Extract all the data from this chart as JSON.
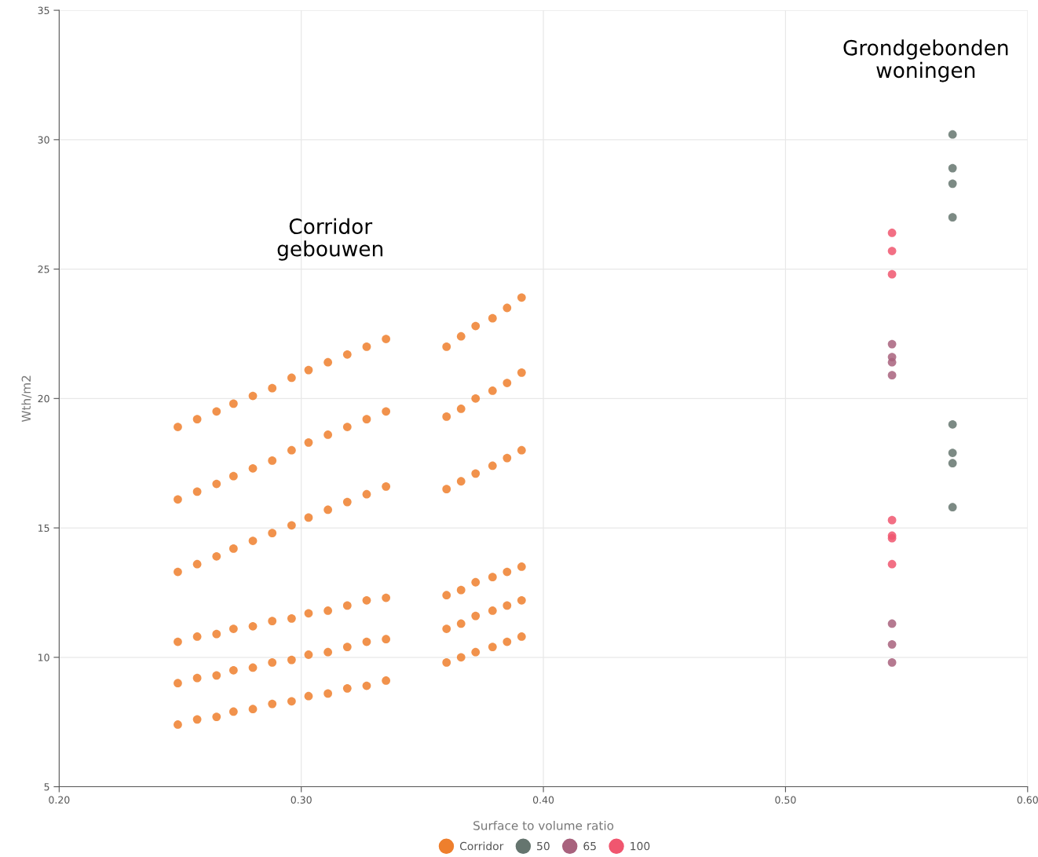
{
  "chart_data": {
    "type": "scatter",
    "xlabel": "Surface to volume ratio",
    "ylabel": "Wth/m2",
    "xlim": [
      0.2,
      0.6
    ],
    "xticks": [
      {
        "value": 0.2,
        "label": "0.20"
      },
      {
        "value": 0.3,
        "label": "0.30"
      },
      {
        "value": 0.4,
        "label": "0.40"
      },
      {
        "value": 0.5,
        "label": "0.50"
      },
      {
        "value": 0.6,
        "label": "0.60"
      }
    ],
    "ylim": [
      5,
      35
    ],
    "yticks": [
      5,
      10,
      15,
      20,
      25,
      30,
      35
    ],
    "grid": true,
    "legend": "bottom",
    "marker": "circle",
    "annotations": [
      "Corridor\ngebouwen",
      "Grondgebonden\nwoningen"
    ],
    "series": [
      {
        "name": "Corridor",
        "color": "#ee7f2d",
        "x": [
          0.249,
          0.249,
          0.249,
          0.249,
          0.249,
          0.249,
          0.257,
          0.257,
          0.257,
          0.257,
          0.257,
          0.257,
          0.265,
          0.265,
          0.265,
          0.265,
          0.265,
          0.265,
          0.272,
          0.272,
          0.272,
          0.272,
          0.272,
          0.272,
          0.28,
          0.28,
          0.28,
          0.28,
          0.28,
          0.28,
          0.288,
          0.288,
          0.288,
          0.288,
          0.288,
          0.288,
          0.296,
          0.296,
          0.296,
          0.296,
          0.296,
          0.296,
          0.303,
          0.303,
          0.303,
          0.303,
          0.303,
          0.303,
          0.311,
          0.311,
          0.311,
          0.311,
          0.311,
          0.311,
          0.319,
          0.319,
          0.319,
          0.319,
          0.319,
          0.319,
          0.327,
          0.327,
          0.327,
          0.327,
          0.327,
          0.327,
          0.335,
          0.335,
          0.335,
          0.335,
          0.335,
          0.335,
          0.36,
          0.36,
          0.36,
          0.36,
          0.36,
          0.36,
          0.366,
          0.366,
          0.366,
          0.366,
          0.366,
          0.366,
          0.372,
          0.372,
          0.372,
          0.372,
          0.372,
          0.372,
          0.379,
          0.379,
          0.379,
          0.379,
          0.379,
          0.379,
          0.385,
          0.385,
          0.385,
          0.385,
          0.385,
          0.385,
          0.391,
          0.391,
          0.391,
          0.391,
          0.391,
          0.391
        ],
        "values": [
          18.9,
          16.1,
          13.3,
          10.6,
          9.0,
          7.4,
          19.2,
          16.4,
          13.6,
          10.8,
          9.2,
          7.6,
          19.5,
          16.7,
          13.9,
          10.9,
          9.3,
          7.7,
          19.8,
          17.0,
          14.2,
          11.1,
          9.5,
          7.9,
          20.1,
          17.3,
          14.5,
          11.2,
          9.6,
          8.0,
          20.4,
          17.6,
          14.8,
          11.4,
          9.8,
          8.2,
          20.8,
          18.0,
          15.1,
          11.5,
          9.9,
          8.3,
          21.1,
          18.3,
          15.4,
          11.7,
          10.1,
          8.5,
          21.4,
          18.6,
          15.7,
          11.8,
          10.2,
          8.6,
          21.7,
          18.9,
          16.0,
          12.0,
          10.4,
          8.8,
          22.0,
          19.2,
          16.3,
          12.2,
          10.6,
          8.9,
          22.3,
          19.5,
          16.6,
          12.3,
          10.7,
          9.1,
          22.0,
          19.3,
          16.5,
          12.4,
          11.1,
          9.8,
          22.4,
          19.6,
          16.8,
          12.6,
          11.3,
          10.0,
          22.8,
          20.0,
          17.1,
          12.9,
          11.6,
          10.2,
          23.1,
          20.3,
          17.4,
          13.1,
          11.8,
          10.4,
          23.5,
          20.6,
          17.7,
          13.3,
          12.0,
          10.6,
          23.9,
          21.0,
          18.0,
          13.5,
          12.2,
          10.8
        ]
      },
      {
        "name": "50",
        "color": "#65756f",
        "x": [
          0.569,
          0.569,
          0.569,
          0.569,
          0.569,
          0.569,
          0.569,
          0.569
        ],
        "values": [
          30.2,
          28.9,
          28.3,
          27.0,
          19.0,
          17.9,
          17.5,
          15.8
        ]
      },
      {
        "name": "65",
        "color": "#a8627d",
        "x": [
          0.544,
          0.544,
          0.544,
          0.544,
          0.544,
          0.544,
          0.544
        ],
        "values": [
          22.1,
          21.6,
          21.4,
          20.9,
          11.3,
          10.5,
          9.8
        ]
      },
      {
        "name": "100",
        "color": "#f0566f",
        "x": [
          0.544,
          0.544,
          0.544,
          0.544,
          0.544,
          0.544,
          0.544
        ],
        "values": [
          26.4,
          25.7,
          24.8,
          15.3,
          14.7,
          14.6,
          13.6
        ]
      }
    ]
  }
}
